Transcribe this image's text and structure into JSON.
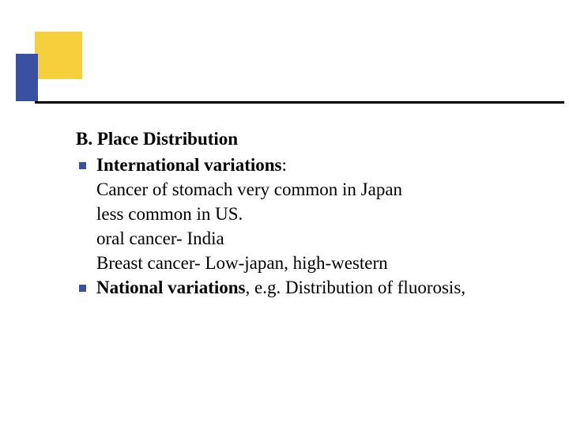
{
  "colors": {
    "yellow": "#f6cf3d",
    "blue": "#3a50a3",
    "line": "#000000",
    "text": "#000000",
    "background": "#ffffff"
  },
  "heading": "B. Place Distribution",
  "items": [
    {
      "title": "International variations",
      "title_suffix": ": ",
      "lines": [
        "Cancer of stomach very common in Japan",
        " less common in US.",
        " oral cancer- India",
        " Breast cancer- Low-japan, high-western"
      ]
    },
    {
      "title": "National variations",
      "title_suffix": ", e.g. Distribution of fluorosis,",
      "lines": []
    }
  ]
}
